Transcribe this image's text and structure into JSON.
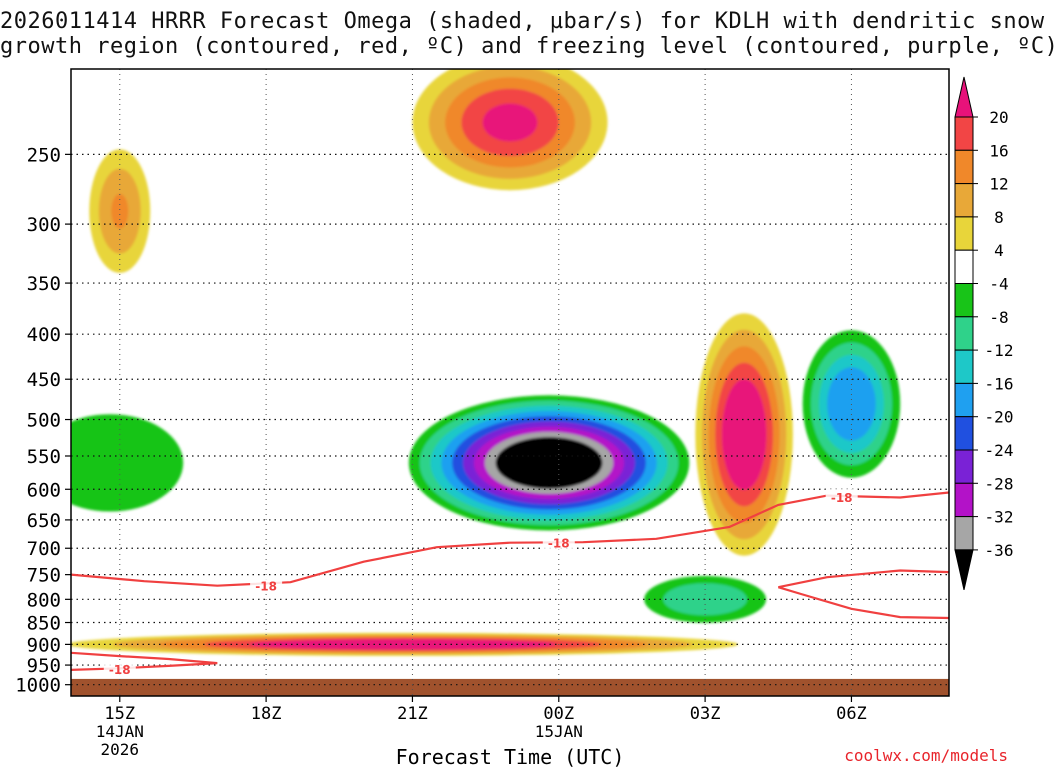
{
  "title": {
    "line1": "2026011414 HRRR Forecast Omega (shaded, µbar/s) for KDLH with dendritic snow",
    "line2": "growth region (contoured, red, ºC) and freezing level (contoured, purple, ºC)"
  },
  "credit": "coolwx.com/models",
  "chart_data": {
    "type": "heatmap",
    "title": "2026011414 HRRR Forecast Omega (shaded, µbar/s) for KDLH with dendritic snow growth region (contoured, red, ºC) and freezing level (contoured, purple, ºC)",
    "xlabel": "Forecast Time (UTC)",
    "ylabel": "",
    "x_ticks": [
      {
        "label": "15Z",
        "sub": [
          "14JAN",
          "2026"
        ],
        "hour": 0
      },
      {
        "label": "18Z",
        "sub": [],
        "hour": 3
      },
      {
        "label": "21Z",
        "sub": [],
        "hour": 6
      },
      {
        "label": "00Z",
        "sub": [
          "15JAN"
        ],
        "hour": 9
      },
      {
        "label": "03Z",
        "sub": [],
        "hour": 12
      },
      {
        "label": "06Z",
        "sub": [],
        "hour": 15
      }
    ],
    "xlim_hours": [
      -1,
      17
    ],
    "y_ticks": [
      250,
      300,
      350,
      400,
      450,
      500,
      550,
      600,
      650,
      700,
      750,
      800,
      850,
      900,
      950,
      1000
    ],
    "ylim_mb": [
      200,
      1030
    ],
    "colorbar": {
      "ticks": [
        20,
        16,
        12,
        8,
        4,
        -4,
        -8,
        -12,
        -16,
        -20,
        -24,
        -28,
        -32,
        -36
      ],
      "bins": [
        {
          "from": 20,
          "to": 24,
          "color": "#e8127a"
        },
        {
          "from": 16,
          "to": 20,
          "color": "#f24545"
        },
        {
          "from": 12,
          "to": 16,
          "color": "#f0882a"
        },
        {
          "from": 8,
          "to": 12,
          "color": "#e8a838"
        },
        {
          "from": 4,
          "to": 8,
          "color": "#e8d53a"
        },
        {
          "from": -4,
          "to": 4,
          "color": "#ffffff"
        },
        {
          "from": -8,
          "to": -4,
          "color": "#18c418"
        },
        {
          "from": -12,
          "to": -8,
          "color": "#2fd28a"
        },
        {
          "from": -16,
          "to": -12,
          "color": "#1ec8c8"
        },
        {
          "from": -20,
          "to": -16,
          "color": "#1fa0f0"
        },
        {
          "from": -24,
          "to": -20,
          "color": "#2050e0"
        },
        {
          "from": -28,
          "to": -24,
          "color": "#7a22d6"
        },
        {
          "from": -32,
          "to": -28,
          "color": "#b312c8"
        },
        {
          "from": -36,
          "to": -32,
          "color": "#a6a6a6"
        },
        {
          "from": -40,
          "to": -36,
          "color": "#000000"
        }
      ]
    },
    "features": [
      {
        "kind": "ascent",
        "min_value": -40,
        "hour": 8.8,
        "pressure_mb": 560,
        "dhour": 2.3,
        "dp_mb": 85
      },
      {
        "kind": "ascent",
        "min_value": -8,
        "hour": -0.2,
        "pressure_mb": 560,
        "dhour": 1.2,
        "dp_mb": 60
      },
      {
        "kind": "ascent",
        "min_value": -20,
        "hour": 15.0,
        "pressure_mb": 480,
        "dhour": 0.8,
        "dp_mb": 80
      },
      {
        "kind": "ascent",
        "min_value": -12,
        "hour": 12.0,
        "pressure_mb": 800,
        "dhour": 1.0,
        "dp_mb": 40
      },
      {
        "kind": "subsidence",
        "max_value": 24,
        "hour": 5.8,
        "pressure_mb": 900,
        "dhour": 5.5,
        "dp_mb": 22
      },
      {
        "kind": "subsidence",
        "max_value": 24,
        "hour": 12.8,
        "pressure_mb": 520,
        "dhour": 0.8,
        "dp_mb": 150
      },
      {
        "kind": "subsidence",
        "max_value": 20,
        "hour": 8.0,
        "pressure_mb": 230,
        "dhour": 1.6,
        "dp_mb": 35
      },
      {
        "kind": "subsidence",
        "max_value": 12,
        "hour": 0.0,
        "pressure_mb": 290,
        "dhour": 0.5,
        "dp_mb": 40
      }
    ],
    "contours": [
      {
        "name": "-18",
        "color": "#f04040",
        "labels": [
          {
            "text": "-18",
            "hour": 3.0,
            "pressure_mb": 772
          },
          {
            "text": "-18",
            "hour": 9.0,
            "pressure_mb": 690
          },
          {
            "text": "-18",
            "hour": 14.8,
            "pressure_mb": 612
          },
          {
            "text": "-18",
            "hour": 0.0,
            "pressure_mb": 960
          }
        ],
        "lines": [
          [
            [
              -1.0,
              750
            ],
            [
              0.5,
              763
            ],
            [
              2.0,
              772
            ],
            [
              3.5,
              765
            ],
            [
              5.0,
              725
            ],
            [
              6.5,
              698
            ],
            [
              8.0,
              690
            ],
            [
              9.5,
              689
            ],
            [
              11.0,
              683
            ],
            [
              12.5,
              662
            ],
            [
              13.5,
              625
            ],
            [
              14.5,
              610
            ],
            [
              16.0,
              613
            ],
            [
              17.0,
              605
            ]
          ],
          [
            [
              -1.0,
              920
            ],
            [
              0.0,
              928
            ],
            [
              1.0,
              935
            ],
            [
              2.0,
              945
            ],
            [
              1.0,
              952
            ],
            [
              0.0,
              958
            ],
            [
              -1.0,
              962
            ]
          ],
          [
            [
              13.5,
              775
            ],
            [
              14.0,
              790
            ],
            [
              15.0,
              820
            ],
            [
              16.0,
              838
            ],
            [
              17.0,
              840
            ]
          ],
          [
            [
              13.5,
              775
            ],
            [
              14.5,
              755
            ],
            [
              16.0,
              742
            ],
            [
              17.0,
              745
            ]
          ]
        ]
      }
    ],
    "ground": {
      "from_mb": 985,
      "color": "#a0522d"
    }
  }
}
